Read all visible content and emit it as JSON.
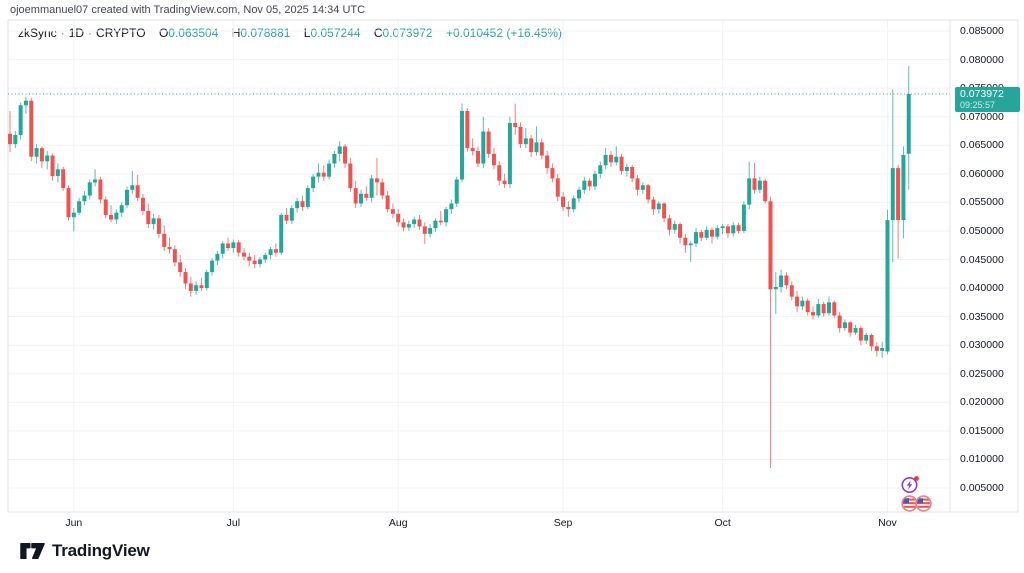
{
  "attribution": "ojoemmanuel07 created with TradingView.com, Nov 05, 2025 14:34 UTC",
  "legend": {
    "symbol": "zkSync",
    "sep": "·",
    "interval": "1D",
    "market": "CRYPTO",
    "o_label": "O",
    "o_value": "0.063504",
    "h_label": "H",
    "h_value": "0.078881",
    "l_label": "L",
    "l_value": "0.057244",
    "c_label": "C",
    "c_value": "0.073972",
    "change": "+0.010452 (+16.45%)"
  },
  "price_axis": {
    "labels": [
      "0.085000",
      "0.080000",
      "0.075000",
      "0.070000",
      "0.065000",
      "0.060000",
      "0.055000",
      "0.050000",
      "0.045000",
      "0.040000",
      "0.035000",
      "0.030000",
      "0.025000",
      "0.020000",
      "0.015000",
      "0.010000",
      "0.005000"
    ],
    "values": [
      0.085,
      0.08,
      0.075,
      0.07,
      0.065,
      0.06,
      0.055,
      0.05,
      0.045,
      0.04,
      0.035,
      0.03,
      0.025,
      0.02,
      0.015,
      0.01,
      0.005
    ]
  },
  "time_axis": {
    "months": [
      {
        "label": "Jun",
        "day": 12
      },
      {
        "label": "Jul",
        "day": 42
      },
      {
        "label": "Aug",
        "day": 73
      },
      {
        "label": "Sep",
        "day": 104
      },
      {
        "label": "Oct",
        "day": 134
      },
      {
        "label": "Nov",
        "day": 165
      }
    ]
  },
  "last_price_badge": {
    "price": "0.073972",
    "countdown": "09:25:57",
    "value": 0.073972
  },
  "logo": {
    "text": "TradingView"
  },
  "colors": {
    "up": "#26a69a",
    "down": "#ef5350",
    "grid": "#f0f3fa",
    "border": "#e0e3eb",
    "text_dark": "#131722",
    "text_gray": "#434651",
    "accent": "#26a69a",
    "badge_bg": "#26a69a",
    "sticker_purple": "#9139d4",
    "sticker_red": "#f23645",
    "flag_ring": "#f77c80"
  },
  "chart_data": {
    "type": "candlestick",
    "symbol": "zkSync",
    "interval": "1D",
    "title": "zkSync / 1D / CRYPTO",
    "start_date": "2025-05-20",
    "end_date": "2025-11-05",
    "last_price": 0.073972,
    "ylim": [
      0.002,
      0.088
    ],
    "ytick_step": 0.005,
    "grid": true,
    "note": "candles are [open, high, low, close], one per day from start_date",
    "candles": [
      [
        0.067,
        0.071,
        0.0638,
        0.0652
      ],
      [
        0.0652,
        0.0675,
        0.0645,
        0.0668
      ],
      [
        0.0668,
        0.0725,
        0.066,
        0.072
      ],
      [
        0.072,
        0.0735,
        0.0705,
        0.0728
      ],
      [
        0.0728,
        0.0733,
        0.0622,
        0.063
      ],
      [
        0.063,
        0.0652,
        0.0618,
        0.0645
      ],
      [
        0.0645,
        0.0648,
        0.061,
        0.0622
      ],
      [
        0.0622,
        0.064,
        0.0608,
        0.0632
      ],
      [
        0.0632,
        0.0635,
        0.0588,
        0.0596
      ],
      [
        0.0596,
        0.0618,
        0.0585,
        0.0608
      ],
      [
        0.0608,
        0.0612,
        0.057,
        0.0575
      ],
      [
        0.0575,
        0.058,
        0.0518,
        0.0524
      ],
      [
        0.0524,
        0.054,
        0.0499,
        0.0532
      ],
      [
        0.0532,
        0.0558,
        0.0528,
        0.0552
      ],
      [
        0.0552,
        0.057,
        0.0545,
        0.0562
      ],
      [
        0.0562,
        0.059,
        0.0555,
        0.0585
      ],
      [
        0.0585,
        0.0608,
        0.0578,
        0.059
      ],
      [
        0.059,
        0.0595,
        0.0548,
        0.0555
      ],
      [
        0.0555,
        0.056,
        0.0522,
        0.0528
      ],
      [
        0.0528,
        0.0545,
        0.0515,
        0.052
      ],
      [
        0.052,
        0.0538,
        0.0512,
        0.0532
      ],
      [
        0.0532,
        0.055,
        0.0525,
        0.0545
      ],
      [
        0.0545,
        0.0578,
        0.054,
        0.0572
      ],
      [
        0.0572,
        0.0605,
        0.0565,
        0.058
      ],
      [
        0.058,
        0.0598,
        0.0552,
        0.0558
      ],
      [
        0.0558,
        0.0565,
        0.0528,
        0.0535
      ],
      [
        0.0535,
        0.0548,
        0.0505,
        0.0512
      ],
      [
        0.0512,
        0.053,
        0.0502,
        0.0522
      ],
      [
        0.0522,
        0.0528,
        0.0488,
        0.0495
      ],
      [
        0.0495,
        0.051,
        0.0465,
        0.0472
      ],
      [
        0.0472,
        0.0488,
        0.046,
        0.0468
      ],
      [
        0.0468,
        0.0475,
        0.0438,
        0.0445
      ],
      [
        0.0445,
        0.0458,
        0.042,
        0.0428
      ],
      [
        0.0428,
        0.0435,
        0.0398,
        0.0408
      ],
      [
        0.0408,
        0.042,
        0.0385,
        0.0395
      ],
      [
        0.0395,
        0.0412,
        0.0388,
        0.0405
      ],
      [
        0.0405,
        0.0418,
        0.0395,
        0.04
      ],
      [
        0.04,
        0.0432,
        0.0396,
        0.0428
      ],
      [
        0.0428,
        0.0452,
        0.0422,
        0.0448
      ],
      [
        0.0448,
        0.0465,
        0.044,
        0.046
      ],
      [
        0.046,
        0.0482,
        0.0452,
        0.0478
      ],
      [
        0.0478,
        0.0488,
        0.0465,
        0.047
      ],
      [
        0.047,
        0.0485,
        0.0462,
        0.048
      ],
      [
        0.048,
        0.0484,
        0.0455,
        0.0462
      ],
      [
        0.0462,
        0.047,
        0.0448,
        0.0455
      ],
      [
        0.0455,
        0.0462,
        0.0438,
        0.0448
      ],
      [
        0.0448,
        0.0458,
        0.0435,
        0.0442
      ],
      [
        0.0442,
        0.0455,
        0.0436,
        0.045
      ],
      [
        0.045,
        0.0462,
        0.0444,
        0.0458
      ],
      [
        0.0458,
        0.0472,
        0.045,
        0.0468
      ],
      [
        0.0468,
        0.0478,
        0.0455,
        0.0462
      ],
      [
        0.0462,
        0.0532,
        0.0458,
        0.0528
      ],
      [
        0.0528,
        0.054,
        0.0512,
        0.0518
      ],
      [
        0.0518,
        0.0545,
        0.0512,
        0.054
      ],
      [
        0.054,
        0.0558,
        0.0532,
        0.0552
      ],
      [
        0.0552,
        0.0562,
        0.0535,
        0.0542
      ],
      [
        0.0542,
        0.058,
        0.0538,
        0.0575
      ],
      [
        0.0575,
        0.06,
        0.0568,
        0.0595
      ],
      [
        0.0595,
        0.0618,
        0.0585,
        0.0602
      ],
      [
        0.0602,
        0.0615,
        0.0588,
        0.0595
      ],
      [
        0.0595,
        0.0625,
        0.059,
        0.0618
      ],
      [
        0.0618,
        0.064,
        0.061,
        0.0635
      ],
      [
        0.0635,
        0.0657,
        0.0622,
        0.0648
      ],
      [
        0.0648,
        0.0652,
        0.061,
        0.0618
      ],
      [
        0.0618,
        0.0628,
        0.0568,
        0.0575
      ],
      [
        0.0575,
        0.0588,
        0.054,
        0.0548
      ],
      [
        0.0548,
        0.0572,
        0.0542,
        0.0565
      ],
      [
        0.0565,
        0.0578,
        0.0552,
        0.0558
      ],
      [
        0.0558,
        0.0598,
        0.055,
        0.0592
      ],
      [
        0.0592,
        0.0628,
        0.0562,
        0.0585
      ],
      [
        0.0585,
        0.0592,
        0.0555,
        0.0562
      ],
      [
        0.0562,
        0.057,
        0.0532,
        0.0538
      ],
      [
        0.0538,
        0.0548,
        0.0522,
        0.053
      ],
      [
        0.053,
        0.0538,
        0.0508,
        0.0515
      ],
      [
        0.0515,
        0.0522,
        0.0499,
        0.0506
      ],
      [
        0.0506,
        0.0518,
        0.05,
        0.0512
      ],
      [
        0.0512,
        0.0525,
        0.0505,
        0.052
      ],
      [
        0.052,
        0.0528,
        0.0502,
        0.0508
      ],
      [
        0.0508,
        0.0515,
        0.0477,
        0.0495
      ],
      [
        0.0495,
        0.0512,
        0.0488,
        0.0505
      ],
      [
        0.0505,
        0.0522,
        0.0498,
        0.0518
      ],
      [
        0.0518,
        0.0535,
        0.051,
        0.0515
      ],
      [
        0.0515,
        0.0542,
        0.0508,
        0.0538
      ],
      [
        0.0538,
        0.0555,
        0.053,
        0.0548
      ],
      [
        0.0548,
        0.0595,
        0.0542,
        0.059
      ],
      [
        0.059,
        0.0723,
        0.0585,
        0.071
      ],
      [
        0.071,
        0.0715,
        0.0638,
        0.0645
      ],
      [
        0.0645,
        0.0662,
        0.0632,
        0.064
      ],
      [
        0.064,
        0.0648,
        0.0612,
        0.0618
      ],
      [
        0.0618,
        0.07,
        0.061,
        0.0674
      ],
      [
        0.0674,
        0.068,
        0.0628,
        0.0635
      ],
      [
        0.0635,
        0.0645,
        0.0608,
        0.0615
      ],
      [
        0.0615,
        0.0622,
        0.058,
        0.0588
      ],
      [
        0.0588,
        0.06,
        0.0575,
        0.0582
      ],
      [
        0.0582,
        0.07,
        0.0575,
        0.0689
      ],
      [
        0.0689,
        0.0723,
        0.0668,
        0.0682
      ],
      [
        0.0682,
        0.069,
        0.0645,
        0.0652
      ],
      [
        0.0652,
        0.068,
        0.0645,
        0.0662
      ],
      [
        0.0662,
        0.0668,
        0.063,
        0.0638
      ],
      [
        0.0638,
        0.0683,
        0.0632,
        0.0655
      ],
      [
        0.0655,
        0.0662,
        0.0625,
        0.0632
      ],
      [
        0.0632,
        0.064,
        0.06,
        0.061
      ],
      [
        0.061,
        0.0618,
        0.0585,
        0.0592
      ],
      [
        0.0592,
        0.06,
        0.0552,
        0.056
      ],
      [
        0.056,
        0.0568,
        0.0535,
        0.0542
      ],
      [
        0.0542,
        0.0552,
        0.0525,
        0.0538
      ],
      [
        0.0538,
        0.0562,
        0.0532,
        0.0557
      ],
      [
        0.0557,
        0.0578,
        0.055,
        0.0572
      ],
      [
        0.0572,
        0.0595,
        0.0565,
        0.0588
      ],
      [
        0.0588,
        0.0592,
        0.057,
        0.0578
      ],
      [
        0.0578,
        0.0605,
        0.0572,
        0.06
      ],
      [
        0.06,
        0.0622,
        0.0592,
        0.0615
      ],
      [
        0.0615,
        0.0645,
        0.0608,
        0.0633
      ],
      [
        0.0633,
        0.064,
        0.0612,
        0.062
      ],
      [
        0.062,
        0.0648,
        0.0615,
        0.063
      ],
      [
        0.063,
        0.0635,
        0.0598,
        0.0605
      ],
      [
        0.0605,
        0.0618,
        0.0595,
        0.0612
      ],
      [
        0.0612,
        0.0615,
        0.0585,
        0.0592
      ],
      [
        0.0592,
        0.0598,
        0.0562,
        0.0572
      ],
      [
        0.0572,
        0.0585,
        0.0565,
        0.058
      ],
      [
        0.058,
        0.0582,
        0.0548,
        0.0555
      ],
      [
        0.0555,
        0.056,
        0.0528,
        0.0538
      ],
      [
        0.0538,
        0.0552,
        0.053,
        0.0548
      ],
      [
        0.0548,
        0.055,
        0.0515,
        0.0522
      ],
      [
        0.0522,
        0.0528,
        0.0492,
        0.0502
      ],
      [
        0.0502,
        0.0518,
        0.0495,
        0.0512
      ],
      [
        0.0512,
        0.0515,
        0.0478,
        0.0488
      ],
      [
        0.0488,
        0.0495,
        0.0462,
        0.0475
      ],
      [
        0.0475,
        0.0482,
        0.0446,
        0.0478
      ],
      [
        0.0478,
        0.0505,
        0.0472,
        0.0498
      ],
      [
        0.0498,
        0.0502,
        0.0482,
        0.0488
      ],
      [
        0.0488,
        0.0508,
        0.0484,
        0.0502
      ],
      [
        0.0502,
        0.0506,
        0.0478,
        0.049
      ],
      [
        0.049,
        0.051,
        0.0485,
        0.0505
      ],
      [
        0.0505,
        0.0512,
        0.0494,
        0.0508
      ],
      [
        0.0508,
        0.0512,
        0.0488,
        0.0496
      ],
      [
        0.0496,
        0.0515,
        0.049,
        0.051
      ],
      [
        0.051,
        0.0514,
        0.0495,
        0.05
      ],
      [
        0.05,
        0.0552,
        0.0496,
        0.0546
      ],
      [
        0.0546,
        0.0621,
        0.0538,
        0.0592
      ],
      [
        0.0592,
        0.0619,
        0.0565,
        0.0572
      ],
      [
        0.0572,
        0.0595,
        0.0566,
        0.0588
      ],
      [
        0.0588,
        0.0592,
        0.0548,
        0.0552
      ],
      [
        0.0552,
        0.056,
        0.0085,
        0.0398
      ],
      [
        0.0398,
        0.0428,
        0.0355,
        0.0402
      ],
      [
        0.0402,
        0.0432,
        0.0392,
        0.0422
      ],
      [
        0.0422,
        0.0428,
        0.0398,
        0.0405
      ],
      [
        0.0405,
        0.0412,
        0.0378,
        0.0385
      ],
      [
        0.0385,
        0.0395,
        0.0358,
        0.0368
      ],
      [
        0.0368,
        0.0385,
        0.0362,
        0.0378
      ],
      [
        0.0378,
        0.0382,
        0.0352,
        0.0358
      ],
      [
        0.0358,
        0.0368,
        0.0345,
        0.0352
      ],
      [
        0.0352,
        0.0381,
        0.0348,
        0.0372
      ],
      [
        0.0372,
        0.0376,
        0.035,
        0.0356
      ],
      [
        0.0356,
        0.0385,
        0.0352,
        0.0375
      ],
      [
        0.0375,
        0.0378,
        0.0348,
        0.0352
      ],
      [
        0.0352,
        0.0358,
        0.0322,
        0.033
      ],
      [
        0.033,
        0.0345,
        0.0325,
        0.034
      ],
      [
        0.034,
        0.0342,
        0.0315,
        0.0322
      ],
      [
        0.0322,
        0.0336,
        0.0318,
        0.033
      ],
      [
        0.033,
        0.0334,
        0.03,
        0.0308
      ],
      [
        0.0308,
        0.0322,
        0.0302,
        0.0318
      ],
      [
        0.0318,
        0.032,
        0.029,
        0.0298
      ],
      [
        0.0298,
        0.0305,
        0.028,
        0.029
      ],
      [
        0.029,
        0.0306,
        0.0278,
        0.0295
      ],
      [
        0.0289,
        0.0537,
        0.0284,
        0.0519
      ],
      [
        0.0519,
        0.0748,
        0.0445,
        0.061
      ],
      [
        0.061,
        0.0616,
        0.0452,
        0.0519
      ],
      [
        0.0519,
        0.0648,
        0.0487,
        0.0633
      ],
      [
        0.063504,
        0.078881,
        0.057244,
        0.073972
      ]
    ]
  }
}
